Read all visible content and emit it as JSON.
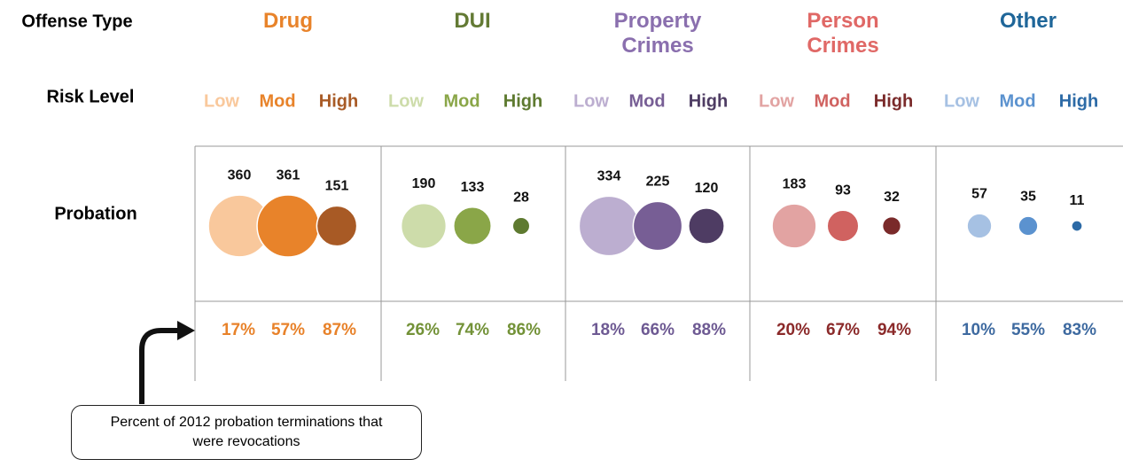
{
  "chart_data": {
    "type": "bubble",
    "row_labels": {
      "offense": "Offense Type",
      "risk": "Risk Level",
      "probation": "Probation"
    },
    "groups": [
      {
        "name": "Drug",
        "color": "#e8832a",
        "rate_color": "#e8822a",
        "levels": [
          "Low",
          "Mod",
          "High"
        ],
        "colors": [
          "#f9c89c",
          "#e8832a",
          "#a85a25"
        ],
        "values": [
          360,
          361,
          151
        ],
        "rates": [
          17,
          57,
          87
        ],
        "rate_labels": [
          "17%",
          "57%",
          "87%"
        ]
      },
      {
        "name": "DUI",
        "color": "#637a34",
        "rate_color": "#739238",
        "levels": [
          "Low",
          "Mod",
          "High"
        ],
        "colors": [
          "#cddcaa",
          "#8aa648",
          "#5e7a30"
        ],
        "values": [
          190,
          133,
          28
        ],
        "rates": [
          26,
          74,
          86
        ],
        "rate_labels": [
          "26%",
          "74%",
          "86%"
        ]
      },
      {
        "name": "Property Crimes",
        "color": "#8a6fae",
        "rate_color": "#6e5a93",
        "levels": [
          "Low",
          "Mod",
          "High"
        ],
        "colors": [
          "#bcaed0",
          "#775e95",
          "#4e3c63"
        ],
        "values": [
          334,
          225,
          120
        ],
        "rates": [
          18,
          66,
          88
        ],
        "rate_labels": [
          "18%",
          "66%",
          "88%"
        ]
      },
      {
        "name": "Person Crimes",
        "color": "#e06866",
        "rate_color": "#8b2a2a",
        "levels": [
          "Low",
          "Mod",
          "High"
        ],
        "colors": [
          "#e2a3a2",
          "#d06260",
          "#7a2a2a"
        ],
        "values": [
          183,
          93,
          32
        ],
        "rates": [
          20,
          67,
          94
        ],
        "rate_labels": [
          "20%",
          "67%",
          "94%"
        ]
      },
      {
        "name": "Other",
        "color": "#1f6699",
        "rate_color": "#3e6aa0",
        "levels": [
          "Low",
          "Mod",
          "High"
        ],
        "colors": [
          "#a6c1e3",
          "#5b92cf",
          "#2c6aa6"
        ],
        "values": [
          57,
          35,
          11
        ],
        "rates": [
          10,
          55,
          83
        ],
        "rate_labels": [
          "10%",
          "55%",
          "83%"
        ]
      }
    ],
    "annotation": "Percent of 2012 probation terminations that were revocations"
  }
}
